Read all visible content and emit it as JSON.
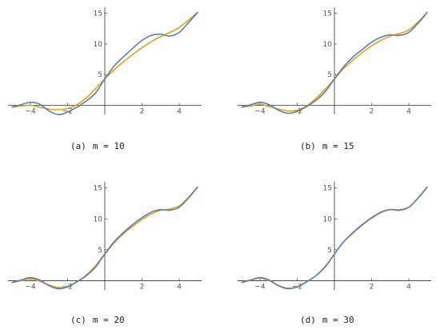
{
  "colors": {
    "approx": "#5b7fb0",
    "target": "#e0a020",
    "axis": "#333333"
  },
  "chart_data": [
    {
      "type": "line",
      "caption": {
        "label": "(a)",
        "text": "m = 10"
      },
      "xlim": [
        -5.2,
        5.2
      ],
      "ylim": [
        -1.5,
        16
      ],
      "xticks": [
        -4,
        -2,
        2,
        4
      ],
      "yticks": [
        5,
        10,
        15
      ],
      "series": [
        {
          "color": "#e0a020",
          "role": "target",
          "x": [
            -5,
            -4.5,
            -4,
            -3.5,
            -3,
            -2.5,
            -2,
            -1.5,
            -1,
            -0.5,
            0,
            0.5,
            1,
            1.5,
            2,
            2.5,
            3,
            3.5,
            4,
            4.5,
            5
          ],
          "y": [
            -0.3,
            -0.1,
            0.0,
            -0.3,
            -0.6,
            -0.7,
            -0.5,
            0.1,
            1.2,
            2.7,
            4.3,
            5.8,
            7.1,
            8.3,
            9.4,
            10.4,
            11.2,
            11.9,
            12.7,
            13.9,
            15.2
          ]
        },
        {
          "color": "#5b7fb0",
          "role": "approximation",
          "x": [
            -5,
            -4.5,
            -4,
            -3.5,
            -3,
            -2.5,
            -2,
            -1.5,
            -1,
            -0.5,
            0,
            0.5,
            1,
            1.5,
            2,
            2.5,
            3,
            3.5,
            4,
            4.5,
            5
          ],
          "y": [
            -0.3,
            0.1,
            0.5,
            0.2,
            -0.9,
            -1.5,
            -1.1,
            -0.3,
            0.7,
            2.0,
            4.3,
            6.4,
            7.9,
            9.3,
            10.6,
            11.4,
            11.6,
            11.3,
            11.9,
            13.5,
            15.2
          ]
        }
      ]
    },
    {
      "type": "line",
      "caption": {
        "label": "(b)",
        "text": "m = 15"
      },
      "xlim": [
        -5.2,
        5.2
      ],
      "ylim": [
        -1.5,
        16
      ],
      "xticks": [
        -4,
        -2,
        2,
        4
      ],
      "yticks": [
        5,
        10,
        15
      ],
      "series": [
        {
          "color": "#e0a020",
          "role": "target",
          "x": [
            -5,
            -4.5,
            -4,
            -3.5,
            -3,
            -2.5,
            -2,
            -1.5,
            -1,
            -0.5,
            0,
            0.5,
            1,
            1.5,
            2,
            2.5,
            3,
            3.5,
            4,
            4.5,
            5
          ],
          "y": [
            -0.3,
            -0.1,
            0.2,
            -0.2,
            -0.6,
            -0.9,
            -0.8,
            -0.1,
            1.1,
            2.6,
            4.3,
            6.0,
            7.4,
            8.6,
            9.7,
            10.6,
            11.3,
            11.7,
            12.3,
            13.6,
            15.2
          ]
        },
        {
          "color": "#5b7fb0",
          "role": "approximation",
          "x": [
            -5,
            -4.5,
            -4,
            -3.5,
            -3,
            -2.5,
            -2,
            -1.5,
            -1,
            -0.5,
            0,
            0.5,
            1,
            1.5,
            2,
            2.5,
            3,
            3.5,
            4,
            4.5,
            5
          ],
          "y": [
            -0.3,
            0.1,
            0.5,
            0.1,
            -0.8,
            -1.3,
            -1.0,
            -0.2,
            0.8,
            2.2,
            4.3,
            6.3,
            7.9,
            9.1,
            10.3,
            11.1,
            11.5,
            11.4,
            11.9,
            13.4,
            15.2
          ]
        }
      ]
    },
    {
      "type": "line",
      "caption": {
        "label": "(c)",
        "text": "m = 20"
      },
      "xlim": [
        -5.2,
        5.2
      ],
      "ylim": [
        -1.5,
        16
      ],
      "xticks": [
        -4,
        -2,
        2,
        4
      ],
      "yticks": [
        5,
        10,
        15
      ],
      "series": [
        {
          "color": "#e0a020",
          "role": "target",
          "x": [
            -5,
            -4.5,
            -4,
            -3.5,
            -3,
            -2.5,
            -2,
            -1.5,
            -1,
            -0.5,
            0,
            0.5,
            1,
            1.5,
            2,
            2.5,
            3,
            3.5,
            4,
            4.5,
            5
          ],
          "y": [
            -0.3,
            0.0,
            0.3,
            -0.1,
            -0.7,
            -1.1,
            -0.9,
            -0.2,
            0.9,
            2.4,
            4.3,
            6.1,
            7.6,
            8.8,
            9.9,
            10.8,
            11.4,
            11.6,
            12.1,
            13.5,
            15.2
          ]
        },
        {
          "color": "#5b7fb0",
          "role": "approximation",
          "x": [
            -5,
            -4.5,
            -4,
            -3.5,
            -3,
            -2.5,
            -2,
            -1.5,
            -1,
            -0.5,
            0,
            0.5,
            1,
            1.5,
            2,
            2.5,
            3,
            3.5,
            4,
            4.5,
            5
          ],
          "y": [
            -0.3,
            0.1,
            0.5,
            0.1,
            -0.8,
            -1.3,
            -1.0,
            -0.2,
            0.8,
            2.2,
            4.3,
            6.3,
            7.8,
            9.1,
            10.2,
            11.1,
            11.5,
            11.4,
            11.9,
            13.4,
            15.2
          ]
        }
      ]
    },
    {
      "type": "line",
      "caption": {
        "label": "(d)",
        "text": "m = 30"
      },
      "xlim": [
        -5.2,
        5.2
      ],
      "ylim": [
        -1.5,
        16
      ],
      "xticks": [
        -4,
        -2,
        2,
        4
      ],
      "yticks": [
        5,
        10,
        15
      ],
      "series": [
        {
          "color": "#e0a020",
          "role": "target",
          "x": [
            -5,
            -4.5,
            -4,
            -3.5,
            -3,
            -2.5,
            -2,
            -1.5,
            -1,
            -0.5,
            0,
            0.5,
            1,
            1.5,
            2,
            2.5,
            3,
            3.5,
            4,
            4.5,
            5
          ],
          "y": [
            -0.3,
            0.1,
            0.4,
            0.0,
            -0.8,
            -1.2,
            -1.0,
            -0.2,
            0.8,
            2.3,
            4.3,
            6.3,
            7.7,
            9.0,
            10.1,
            11.0,
            11.5,
            11.5,
            11.9,
            13.4,
            15.2
          ]
        },
        {
          "color": "#5b7fb0",
          "role": "approximation",
          "x": [
            -5,
            -4.5,
            -4,
            -3.5,
            -3,
            -2.5,
            -2,
            -1.5,
            -1,
            -0.5,
            0,
            0.5,
            1,
            1.5,
            2,
            2.5,
            3,
            3.5,
            4,
            4.5,
            5
          ],
          "y": [
            -0.3,
            0.1,
            0.5,
            0.1,
            -0.8,
            -1.3,
            -1.0,
            -0.2,
            0.8,
            2.2,
            4.3,
            6.3,
            7.8,
            9.1,
            10.2,
            11.1,
            11.5,
            11.4,
            11.9,
            13.4,
            15.2
          ]
        }
      ]
    }
  ]
}
